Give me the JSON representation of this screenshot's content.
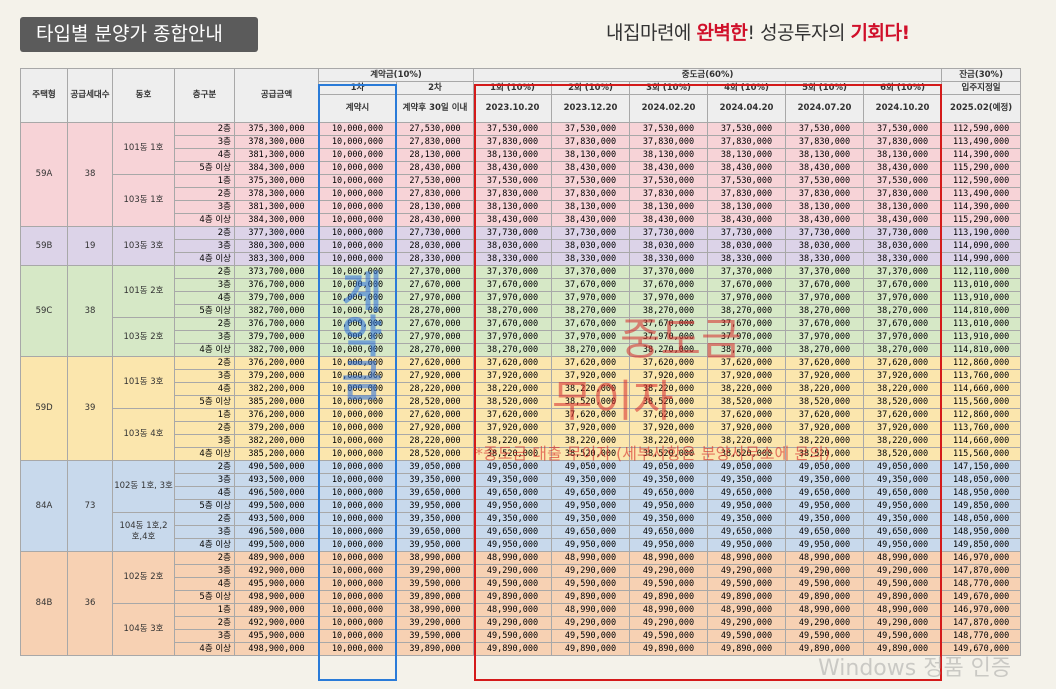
{
  "title": "타입별 분양가 종합안내",
  "slogan": {
    "p1": "내집마련에 ",
    "p2": "완벽한",
    "p3": "! 성공투자의 ",
    "p4": "기회다",
    "p5": "!"
  },
  "headers": {
    "type": "주택형",
    "supply": "공급세대수",
    "dong": "동호",
    "floor": "층구분",
    "price": "공급금액",
    "contract": "계약금(10%)",
    "c1": "1차",
    "c1sub": "계약시",
    "c2": "2차",
    "c2sub": "계약후 30일 이내",
    "mid": "중도금(60%)",
    "m": [
      {
        "n": "1회 (10%)",
        "d": "2023.10.20"
      },
      {
        "n": "2회 (10%)",
        "d": "2023.12.20"
      },
      {
        "n": "3회 (10%)",
        "d": "2024.02.20"
      },
      {
        "n": "4회 (10%)",
        "d": "2024.04.20"
      },
      {
        "n": "5회 (10%)",
        "d": "2024.07.20"
      },
      {
        "n": "6회 (10%)",
        "d": "2024.10.20"
      }
    ],
    "balance": "잔금(30%)",
    "move": "입주지정일",
    "moveDate": "2025.02(예정)"
  },
  "watermarks": {
    "blue": "계약금",
    "red1": "중도금",
    "red2": "무이자",
    "red3": "*중도금 대출 무이자 (세부사항은 분양사무소에 문의)",
    "os": "Windows 정품 인증"
  },
  "groups": [
    {
      "type": "59A",
      "supply": "38",
      "color": "#f7d3d7",
      "subs": [
        {
          "dong": "101동 1호",
          "rows": [
            {
              "f": "2층",
              "p": "375,300,000",
              "c2": "27,530,000",
              "m": "37,530,000",
              "b": "112,590,000"
            },
            {
              "f": "3층",
              "p": "378,300,000",
              "c2": "27,830,000",
              "m": "37,830,000",
              "b": "113,490,000"
            },
            {
              "f": "4층",
              "p": "381,300,000",
              "c2": "28,130,000",
              "m": "38,130,000",
              "b": "114,390,000"
            },
            {
              "f": "5층 이상",
              "p": "384,300,000",
              "c2": "28,430,000",
              "m": "38,430,000",
              "b": "115,290,000"
            }
          ]
        },
        {
          "dong": "103동 1호",
          "rows": [
            {
              "f": "1층",
              "p": "375,300,000",
              "c2": "27,530,000",
              "m": "37,530,000",
              "b": "112,590,000"
            },
            {
              "f": "2층",
              "p": "378,300,000",
              "c2": "27,830,000",
              "m": "37,830,000",
              "b": "113,490,000"
            },
            {
              "f": "3층",
              "p": "381,300,000",
              "c2": "28,130,000",
              "m": "38,130,000",
              "b": "114,390,000"
            },
            {
              "f": "4층 이상",
              "p": "384,300,000",
              "c2": "28,430,000",
              "m": "38,430,000",
              "b": "115,290,000"
            }
          ]
        }
      ]
    },
    {
      "type": "59B",
      "supply": "19",
      "color": "#dcd3e8",
      "subs": [
        {
          "dong": "103동 3호",
          "rows": [
            {
              "f": "2층",
              "p": "377,300,000",
              "c2": "27,730,000",
              "m": "37,730,000",
              "b": "113,190,000"
            },
            {
              "f": "3층",
              "p": "380,300,000",
              "c2": "28,030,000",
              "m": "38,030,000",
              "b": "114,090,000"
            },
            {
              "f": "4층 이상",
              "p": "383,300,000",
              "c2": "28,330,000",
              "m": "38,330,000",
              "b": "114,990,000"
            }
          ]
        }
      ]
    },
    {
      "type": "59C",
      "supply": "38",
      "color": "#d6e8c6",
      "subs": [
        {
          "dong": "101동 2호",
          "rows": [
            {
              "f": "2층",
              "p": "373,700,000",
              "c2": "27,370,000",
              "m": "37,370,000",
              "b": "112,110,000"
            },
            {
              "f": "3층",
              "p": "376,700,000",
              "c2": "27,670,000",
              "m": "37,670,000",
              "b": "113,010,000"
            },
            {
              "f": "4층",
              "p": "379,700,000",
              "c2": "27,970,000",
              "m": "37,970,000",
              "b": "113,910,000"
            },
            {
              "f": "5층 이상",
              "p": "382,700,000",
              "c2": "28,270,000",
              "m": "38,270,000",
              "b": "114,810,000"
            }
          ]
        },
        {
          "dong": "103동 2호",
          "rows": [
            {
              "f": "2층",
              "p": "376,700,000",
              "c2": "27,670,000",
              "m": "37,670,000",
              "b": "113,010,000"
            },
            {
              "f": "3층",
              "p": "379,700,000",
              "c2": "27,970,000",
              "m": "37,970,000",
              "b": "113,910,000"
            },
            {
              "f": "4층 이상",
              "p": "382,700,000",
              "c2": "28,270,000",
              "m": "38,270,000",
              "b": "114,810,000"
            }
          ]
        }
      ]
    },
    {
      "type": "59D",
      "supply": "39",
      "color": "#fbe6ad",
      "subs": [
        {
          "dong": "101동 3호",
          "rows": [
            {
              "f": "2층",
              "p": "376,200,000",
              "c2": "27,620,000",
              "m": "37,620,000",
              "b": "112,860,000"
            },
            {
              "f": "3층",
              "p": "379,200,000",
              "c2": "27,920,000",
              "m": "37,920,000",
              "b": "113,760,000"
            },
            {
              "f": "4층",
              "p": "382,200,000",
              "c2": "28,220,000",
              "m": "38,220,000",
              "b": "114,660,000"
            },
            {
              "f": "5층 이상",
              "p": "385,200,000",
              "c2": "28,520,000",
              "m": "38,520,000",
              "b": "115,560,000"
            }
          ]
        },
        {
          "dong": "103동 4호",
          "rows": [
            {
              "f": "1층",
              "p": "376,200,000",
              "c2": "27,620,000",
              "m": "37,620,000",
              "b": "112,860,000"
            },
            {
              "f": "2층",
              "p": "379,200,000",
              "c2": "27,920,000",
              "m": "37,920,000",
              "b": "113,760,000"
            },
            {
              "f": "3층",
              "p": "382,200,000",
              "c2": "28,220,000",
              "m": "38,220,000",
              "b": "114,660,000"
            },
            {
              "f": "4층 이상",
              "p": "385,200,000",
              "c2": "28,520,000",
              "m": "38,520,000",
              "b": "115,560,000"
            }
          ]
        }
      ]
    },
    {
      "type": "84A",
      "supply": "73",
      "color": "#c8d9ec",
      "subs": [
        {
          "dong": "102동 1호, 3호",
          "rows": [
            {
              "f": "2층",
              "p": "490,500,000",
              "c2": "39,050,000",
              "m": "49,050,000",
              "b": "147,150,000"
            },
            {
              "f": "3층",
              "p": "493,500,000",
              "c2": "39,350,000",
              "m": "49,350,000",
              "b": "148,050,000"
            },
            {
              "f": "4층",
              "p": "496,500,000",
              "c2": "39,650,000",
              "m": "49,650,000",
              "b": "148,950,000"
            },
            {
              "f": "5층 이상",
              "p": "499,500,000",
              "c2": "39,950,000",
              "m": "49,950,000",
              "b": "149,850,000"
            }
          ]
        },
        {
          "dong": "104동 1호,2호,4호",
          "rows": [
            {
              "f": "2층",
              "p": "493,500,000",
              "c2": "39,350,000",
              "m": "49,350,000",
              "b": "148,050,000"
            },
            {
              "f": "3층",
              "p": "496,500,000",
              "c2": "39,650,000",
              "m": "49,650,000",
              "b": "148,950,000"
            },
            {
              "f": "4층 이상",
              "p": "499,500,000",
              "c2": "39,950,000",
              "m": "49,950,000",
              "b": "149,850,000"
            }
          ]
        }
      ]
    },
    {
      "type": "84B",
      "supply": "36",
      "color": "#f7d1b3",
      "subs": [
        {
          "dong": "102동 2호",
          "rows": [
            {
              "f": "2층",
              "p": "489,900,000",
              "c2": "38,990,000",
              "m": "48,990,000",
              "b": "146,970,000"
            },
            {
              "f": "3층",
              "p": "492,900,000",
              "c2": "39,290,000",
              "m": "49,290,000",
              "b": "147,870,000"
            },
            {
              "f": "4층",
              "p": "495,900,000",
              "c2": "39,590,000",
              "m": "49,590,000",
              "b": "148,770,000"
            },
            {
              "f": "5층 이상",
              "p": "498,900,000",
              "c2": "39,890,000",
              "m": "49,890,000",
              "b": "149,670,000"
            }
          ]
        },
        {
          "dong": "104동 3호",
          "rows": [
            {
              "f": "1층",
              "p": "489,900,000",
              "c2": "38,990,000",
              "m": "48,990,000",
              "b": "146,970,000"
            },
            {
              "f": "2층",
              "p": "492,900,000",
              "c2": "39,290,000",
              "m": "49,290,000",
              "b": "147,870,000"
            },
            {
              "f": "3층",
              "p": "495,900,000",
              "c2": "39,590,000",
              "m": "49,590,000",
              "b": "148,770,000"
            },
            {
              "f": "4층 이상",
              "p": "498,900,000",
              "c2": "39,890,000",
              "m": "49,890,000",
              "b": "149,670,000"
            }
          ]
        }
      ]
    }
  ],
  "c1value": "10,000,000"
}
